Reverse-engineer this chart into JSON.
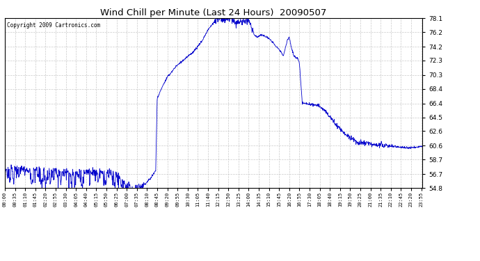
{
  "title": "Wind Chill per Minute (Last 24 Hours)  20090507",
  "copyright_text": "Copyright 2009 Cartronics.com",
  "line_color": "#0000cc",
  "background_color": "#ffffff",
  "plot_background": "#ffffff",
  "grid_color": "#bbbbbb",
  "ylim": [
    54.8,
    78.1
  ],
  "yticks": [
    54.8,
    56.7,
    58.7,
    60.6,
    62.6,
    64.5,
    66.4,
    68.4,
    70.3,
    72.3,
    74.2,
    76.2,
    78.1
  ],
  "xtick_labels": [
    "00:00",
    "00:35",
    "01:10",
    "01:45",
    "02:20",
    "02:55",
    "03:30",
    "04:05",
    "04:40",
    "05:15",
    "05:50",
    "06:25",
    "07:00",
    "07:35",
    "08:10",
    "08:45",
    "09:20",
    "09:55",
    "10:30",
    "11:05",
    "11:40",
    "12:15",
    "12:50",
    "13:25",
    "14:00",
    "14:35",
    "15:10",
    "15:45",
    "16:20",
    "16:55",
    "17:30",
    "18:05",
    "18:40",
    "19:15",
    "19:50",
    "20:25",
    "21:00",
    "21:35",
    "22:10",
    "22:45",
    "23:20",
    "23:55"
  ],
  "n_points": 1440,
  "figsize": [
    6.9,
    3.75
  ],
  "dpi": 100
}
